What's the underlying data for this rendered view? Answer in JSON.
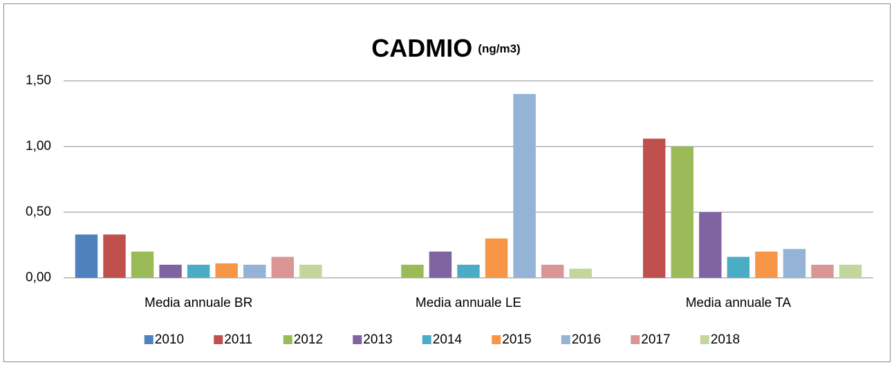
{
  "chart_data": {
    "type": "bar",
    "title": "CADMIO",
    "subtitle": "(ng/m3)",
    "categories": [
      "Media annuale BR",
      "Media annuale LE",
      "Media annuale TA"
    ],
    "series": [
      {
        "name": "2010",
        "color": "#4f81bd",
        "values": [
          0.33,
          null,
          null
        ]
      },
      {
        "name": "2011",
        "color": "#c0504d",
        "values": [
          0.33,
          null,
          1.06
        ]
      },
      {
        "name": "2012",
        "color": "#9bbb59",
        "values": [
          0.2,
          0.1,
          1.0
        ]
      },
      {
        "name": "2013",
        "color": "#8064a2",
        "values": [
          0.1,
          0.2,
          0.5
        ]
      },
      {
        "name": "2014",
        "color": "#4bacc6",
        "values": [
          0.1,
          0.1,
          0.16
        ]
      },
      {
        "name": "2015",
        "color": "#f79646",
        "values": [
          0.11,
          0.3,
          0.2
        ]
      },
      {
        "name": "2016",
        "color": "#95b3d7",
        "values": [
          0.1,
          1.4,
          0.22
        ]
      },
      {
        "name": "2017",
        "color": "#d99694",
        "values": [
          0.16,
          0.1,
          0.1
        ]
      },
      {
        "name": "2018",
        "color": "#c3d69b",
        "values": [
          0.1,
          0.07,
          0.1
        ]
      }
    ],
    "ylim": [
      0,
      1.5
    ],
    "yticks": [
      {
        "value": 0,
        "label": "0,00"
      },
      {
        "value": 0.5,
        "label": "0,50"
      },
      {
        "value": 1,
        "label": "1,00"
      },
      {
        "value": 1.5,
        "label": "1,50"
      }
    ],
    "grid": true,
    "legend": "bottom"
  }
}
